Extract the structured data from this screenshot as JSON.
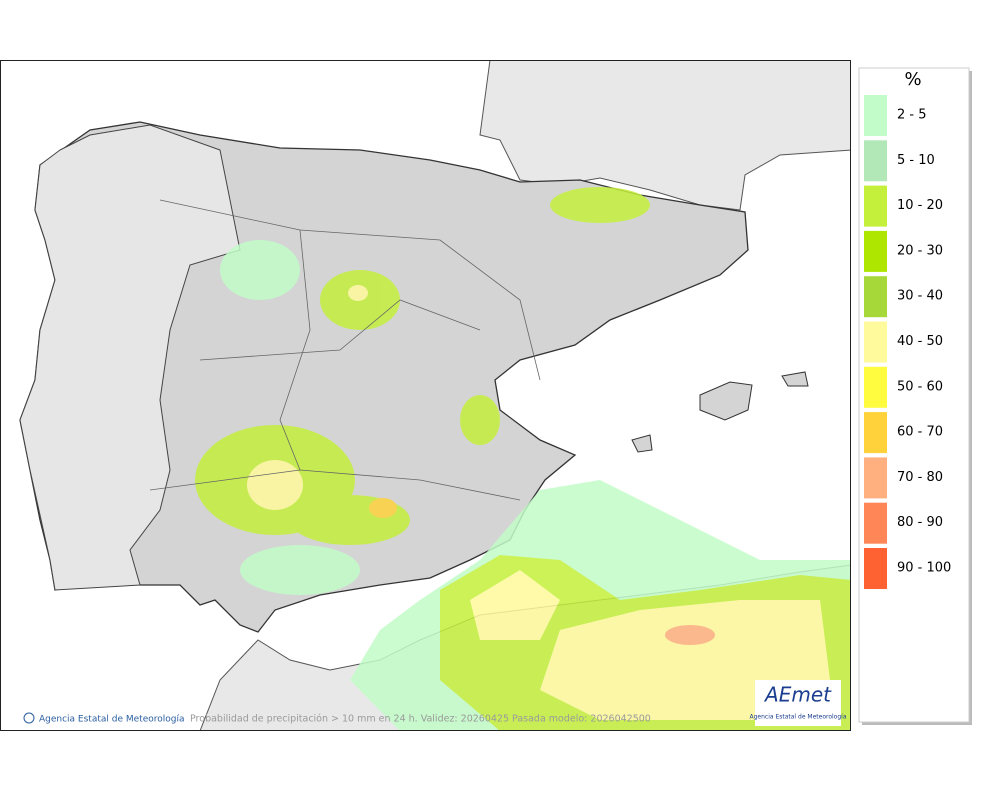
{
  "map": {
    "caption": "Probabilidad de precipitación > 10 mm en 24 h. Validez: 20260425 Pasada modelo: 2026042500",
    "credit": "Agencia Estatal de Meteorología",
    "logo": {
      "name": "AEmet",
      "subtitle": "Agencia Estatal de Meteorología"
    }
  },
  "legend": {
    "title": "%",
    "items": [
      {
        "label": "2 - 5",
        "color": "#c2fcc8"
      },
      {
        "label": "5 - 10",
        "color": "#b2e8b8"
      },
      {
        "label": "10 - 20",
        "color": "#c4f03c"
      },
      {
        "label": "20 - 30",
        "color": "#aee600"
      },
      {
        "label": "30 - 40",
        "color": "#a6d83a"
      },
      {
        "label": "40 - 50",
        "color": "#fffa9c"
      },
      {
        "label": "50 - 60",
        "color": "#fffc40"
      },
      {
        "label": "60 - 70",
        "color": "#ffd23c"
      },
      {
        "label": "70 - 80",
        "color": "#ffb07e"
      },
      {
        "label": "80 - 90",
        "color": "#ff8656"
      },
      {
        "label": "90 - 100",
        "color": "#ff6232"
      }
    ]
  }
}
